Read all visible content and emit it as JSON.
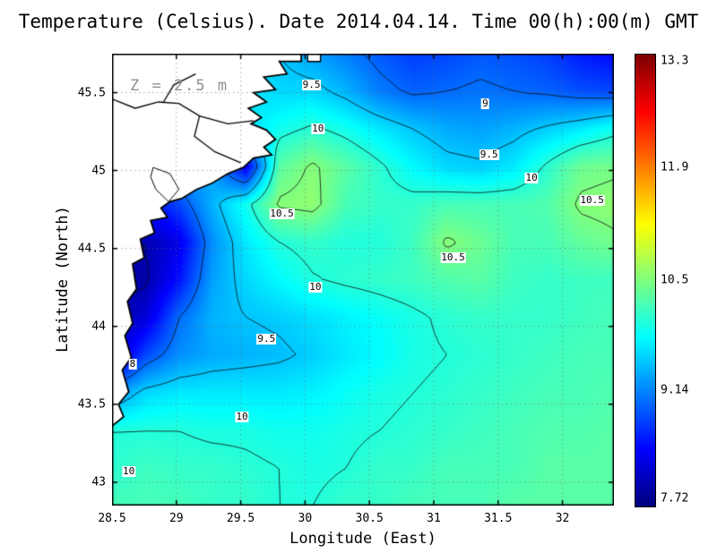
{
  "title": "Temperature (Celsius). Date 2014.04.14. Time 00(h):00(m) GMT",
  "annotation": "Z = 2.5 m",
  "axes": {
    "x_label": "Longitude (East)",
    "y_label": "Latitude (North)",
    "x_ticks": [
      "28.5",
      "29",
      "29.5",
      "30",
      "30.5",
      "31",
      "31.5",
      "32"
    ],
    "y_ticks": [
      "45.5",
      "45",
      "44.5",
      "44",
      "43.5",
      "43"
    ]
  },
  "colorbar": {
    "min": 7.72,
    "max": 13.3,
    "labels": [
      "13.3",
      "11.9",
      "10.5",
      "9.14",
      "7.72"
    ]
  },
  "chart_data": {
    "type": "heatmap",
    "title": "Temperature (Celsius). Date 2014.04.14. Time 00(h):00(m) GMT",
    "xlabel": "Longitude (East)",
    "ylabel": "Latitude (North)",
    "x_range": [
      28.5,
      32.4
    ],
    "y_range": [
      42.85,
      45.75
    ],
    "vmin": 7.72,
    "vmax": 13.3,
    "colormap": "jet",
    "depth_annotation": "Z = 2.5 m",
    "lons": [
      28.5,
      28.76,
      29.02,
      29.28,
      29.54,
      29.8,
      30.06,
      30.32,
      30.58,
      30.84,
      31.1,
      31.36,
      31.62,
      31.88,
      32.14,
      32.4
    ],
    "lats": [
      45.75,
      45.51,
      45.27,
      45.02,
      44.78,
      44.54,
      44.3,
      44.06,
      43.82,
      43.57,
      43.33,
      43.09,
      42.85
    ],
    "temperature_c": [
      [
        9.5,
        9.5,
        9.5,
        9.5,
        9.6,
        9.5,
        9.3,
        9.1,
        8.9,
        8.75,
        8.8,
        8.9,
        8.85,
        8.75,
        8.55,
        8.45
      ],
      [
        9.6,
        9.6,
        9.6,
        9.6,
        9.7,
        9.6,
        9.6,
        9.4,
        9.1,
        8.95,
        9.0,
        9.05,
        9.0,
        8.95,
        8.85,
        8.8
      ],
      [
        9.5,
        9.5,
        9.5,
        9.5,
        9.6,
        9.9,
        10.05,
        9.9,
        9.7,
        9.5,
        9.35,
        9.3,
        9.4,
        9.55,
        9.7,
        9.9
      ],
      [
        9.3,
        9.3,
        9.4,
        9.3,
        8.3,
        10.3,
        10.55,
        10.3,
        10.05,
        9.8,
        9.6,
        9.55,
        9.7,
        10.05,
        10.4,
        10.45
      ],
      [
        8.6,
        8.4,
        8.8,
        9.4,
        9.9,
        10.55,
        10.6,
        10.2,
        10.1,
        10.1,
        10.2,
        10.2,
        10.2,
        10.25,
        10.55,
        10.6
      ],
      [
        8.1,
        8.0,
        8.3,
        9.2,
        9.7,
        10.0,
        10.1,
        10.0,
        10.0,
        10.15,
        10.55,
        10.4,
        10.2,
        10.2,
        10.35,
        10.45
      ],
      [
        7.9,
        7.95,
        8.5,
        9.3,
        9.6,
        9.8,
        9.98,
        10.05,
        10.1,
        10.15,
        10.25,
        10.3,
        10.15,
        10.1,
        10.15,
        10.15
      ],
      [
        7.95,
        8.2,
        9.0,
        9.4,
        9.5,
        9.55,
        9.65,
        9.75,
        9.85,
        9.95,
        10.05,
        10.1,
        10.1,
        10.1,
        10.15,
        10.2
      ],
      [
        8.0,
        8.8,
        9.2,
        9.35,
        9.4,
        9.45,
        9.55,
        9.7,
        9.8,
        9.95,
        10.0,
        10.05,
        10.1,
        10.15,
        10.2,
        10.2
      ],
      [
        9.2,
        9.6,
        9.7,
        9.7,
        9.7,
        9.7,
        9.75,
        9.85,
        9.95,
        10.0,
        10.05,
        10.1,
        10.15,
        10.2,
        10.2,
        10.25
      ],
      [
        10.0,
        10.0,
        10.0,
        9.95,
        9.95,
        9.9,
        9.9,
        9.95,
        10.0,
        10.05,
        10.1,
        10.15,
        10.2,
        10.25,
        10.25,
        10.3
      ],
      [
        10.05,
        10.15,
        10.1,
        10.1,
        10.05,
        10.0,
        9.95,
        10.0,
        10.1,
        10.1,
        10.2,
        10.2,
        10.2,
        10.3,
        10.3,
        10.3
      ],
      [
        10.2,
        10.2,
        10.2,
        10.1,
        10.1,
        10.0,
        10.0,
        10.1,
        10.1,
        10.2,
        10.2,
        10.2,
        10.3,
        10.3,
        10.3,
        10.3
      ]
    ],
    "contour_levels": [
      8,
      9,
      9.5,
      10,
      10.5
    ],
    "contour_labels": [
      {
        "text": "9.5",
        "lon": 30.05,
        "lat": 45.55
      },
      {
        "text": "9",
        "lon": 31.4,
        "lat": 45.43
      },
      {
        "text": "10",
        "lon": 30.1,
        "lat": 45.27
      },
      {
        "text": "9.5",
        "lon": 31.43,
        "lat": 45.1
      },
      {
        "text": "10",
        "lon": 31.76,
        "lat": 44.95
      },
      {
        "text": "10.5",
        "lon": 32.23,
        "lat": 44.81
      },
      {
        "text": "10.5",
        "lon": 29.82,
        "lat": 44.72
      },
      {
        "text": "10.5",
        "lon": 31.15,
        "lat": 44.44
      },
      {
        "text": "10",
        "lon": 30.08,
        "lat": 44.25
      },
      {
        "text": "9.5",
        "lon": 29.7,
        "lat": 43.92
      },
      {
        "text": "8",
        "lon": 28.66,
        "lat": 43.76
      },
      {
        "text": "10",
        "lon": 29.51,
        "lat": 43.42
      },
      {
        "text": "10",
        "lon": 28.63,
        "lat": 43.07
      }
    ],
    "land_polygon": [
      [
        28.5,
        45.78
      ],
      [
        29.97,
        45.78
      ],
      [
        29.97,
        45.7
      ],
      [
        29.8,
        45.7
      ],
      [
        29.86,
        45.62
      ],
      [
        29.68,
        45.6
      ],
      [
        29.77,
        45.52
      ],
      [
        29.6,
        45.5
      ],
      [
        29.7,
        45.44
      ],
      [
        29.56,
        45.4
      ],
      [
        29.66,
        45.34
      ],
      [
        29.58,
        45.3
      ],
      [
        29.7,
        45.26
      ],
      [
        29.77,
        45.2
      ],
      [
        29.68,
        45.15
      ],
      [
        29.74,
        45.1
      ],
      [
        29.6,
        45.08
      ],
      [
        29.52,
        45.02
      ],
      [
        29.4,
        44.98
      ],
      [
        29.28,
        44.92
      ],
      [
        29.16,
        44.88
      ],
      [
        29.04,
        44.82
      ],
      [
        28.95,
        44.8
      ],
      [
        28.88,
        44.76
      ],
      [
        28.93,
        44.7
      ],
      [
        28.8,
        44.68
      ],
      [
        28.83,
        44.6
      ],
      [
        28.72,
        44.56
      ],
      [
        28.75,
        44.44
      ],
      [
        28.66,
        44.4
      ],
      [
        28.69,
        44.24
      ],
      [
        28.62,
        44.16
      ],
      [
        28.66,
        44.02
      ],
      [
        28.6,
        43.94
      ],
      [
        28.65,
        43.8
      ],
      [
        28.58,
        43.72
      ],
      [
        28.63,
        43.58
      ],
      [
        28.55,
        43.5
      ],
      [
        28.59,
        43.42
      ],
      [
        28.5,
        43.36
      ]
    ],
    "data_gap_notch": [
      [
        30.02,
        45.78
      ],
      [
        30.02,
        45.7
      ],
      [
        30.12,
        45.7
      ],
      [
        30.12,
        45.78
      ]
    ],
    "rivers": [
      [
        [
          28.5,
          45.46
        ],
        [
          28.68,
          45.4
        ],
        [
          28.86,
          45.44
        ],
        [
          29.02,
          45.43
        ],
        [
          29.18,
          45.35
        ],
        [
          29.4,
          45.3
        ],
        [
          29.6,
          45.32
        ]
      ],
      [
        [
          29.18,
          45.35
        ],
        [
          29.14,
          45.22
        ],
        [
          29.3,
          45.12
        ],
        [
          29.5,
          45.05
        ]
      ],
      [
        [
          28.9,
          45.44
        ],
        [
          28.98,
          45.55
        ],
        [
          29.15,
          45.62
        ]
      ]
    ],
    "lakes": [
      [
        [
          28.82,
          45.02
        ],
        [
          28.95,
          44.98
        ],
        [
          29.02,
          44.88
        ],
        [
          28.94,
          44.8
        ],
        [
          28.84,
          44.88
        ],
        [
          28.8,
          44.96
        ]
      ]
    ]
  }
}
